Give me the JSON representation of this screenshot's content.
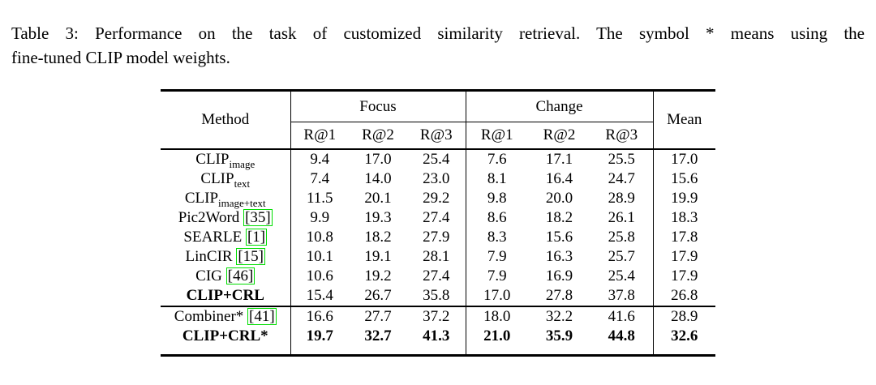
{
  "caption": {
    "line1": "Table 3: Performance on the task of customized similarity retrieval. The symbol * means using the",
    "line2": "fine-tuned CLIP model weights."
  },
  "table": {
    "header": {
      "method": "Method",
      "groups": [
        "Focus",
        "Change"
      ],
      "subheaders": [
        "R@1",
        "R@2",
        "R@3",
        "R@1",
        "R@2",
        "R@3"
      ],
      "mean": "Mean"
    },
    "sections": [
      {
        "rows": [
          {
            "method": {
              "base": "CLIP",
              "sub": "image"
            },
            "values": [
              "9.4",
              "17.0",
              "25.4",
              "7.6",
              "17.1",
              "25.5",
              "17.0"
            ]
          },
          {
            "method": {
              "base": "CLIP",
              "sub": "text"
            },
            "values": [
              "7.4",
              "14.0",
              "23.0",
              "8.1",
              "16.4",
              "24.7",
              "15.6"
            ]
          },
          {
            "method": {
              "base": "CLIP",
              "sub": "image+text"
            },
            "values": [
              "11.5",
              "20.1",
              "29.2",
              "9.8",
              "20.0",
              "28.9",
              "19.9"
            ]
          },
          {
            "method": {
              "base": "Pic2Word",
              "cite": "[35]"
            },
            "values": [
              "9.9",
              "19.3",
              "27.4",
              "8.6",
              "18.2",
              "26.1",
              "18.3"
            ]
          },
          {
            "method": {
              "base": "SEARLE",
              "cite": "[1]"
            },
            "values": [
              "10.8",
              "18.2",
              "27.9",
              "8.3",
              "15.6",
              "25.8",
              "17.8"
            ]
          },
          {
            "method": {
              "base": "LinCIR",
              "cite": "[15]"
            },
            "values": [
              "10.1",
              "19.1",
              "28.1",
              "7.9",
              "16.3",
              "25.7",
              "17.9"
            ]
          },
          {
            "method": {
              "base": "CIG",
              "cite": "[46]"
            },
            "values": [
              "10.6",
              "19.2",
              "27.4",
              "7.9",
              "16.9",
              "25.4",
              "17.9"
            ]
          },
          {
            "method": {
              "base": "CLIP+CRL",
              "bold": true
            },
            "values": [
              "15.4",
              "26.7",
              "35.8",
              "17.0",
              "27.8",
              "37.8",
              "26.8"
            ]
          }
        ]
      },
      {
        "rows": [
          {
            "method": {
              "base": "Combiner*",
              "cite": "[41]"
            },
            "values": [
              "16.6",
              "27.7",
              "37.2",
              "18.0",
              "32.2",
              "41.6",
              "28.9"
            ]
          },
          {
            "method": {
              "base": "CLIP+CRL*",
              "bold": true
            },
            "bold_values": true,
            "values": [
              "19.7",
              "32.7",
              "41.3",
              "21.0",
              "35.9",
              "44.8",
              "32.6"
            ]
          }
        ]
      }
    ],
    "colors": {
      "citation_border": "#00dd00",
      "text": "#000000",
      "background": "#ffffff"
    }
  }
}
